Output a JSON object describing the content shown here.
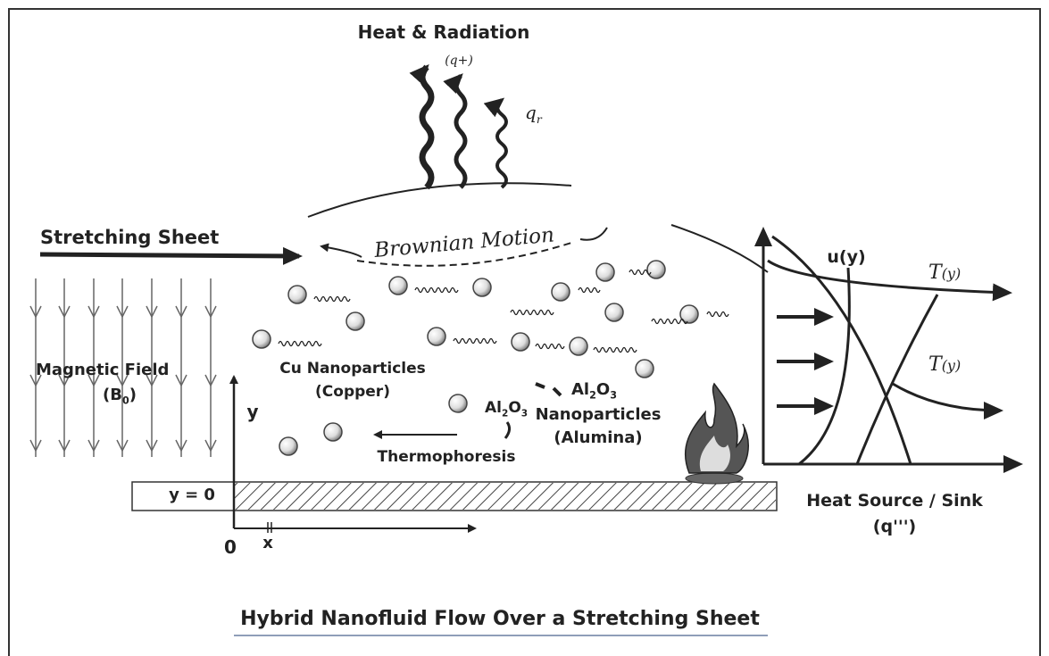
{
  "header": {
    "title": "Heat & Radiation",
    "subtitle": "(q+)",
    "flux": [
      "q",
      "r"
    ]
  },
  "labels": {
    "stretching": "Stretching Sheet",
    "brownian": "Brownian Motion",
    "magnetic": "Magnetic Field",
    "magnetic_symbol": [
      "(B",
      "0",
      ")"
    ],
    "cu": "Cu Nanoparticles",
    "cu_name": "(Copper)",
    "al_small": [
      "Al",
      "2",
      "O",
      "3"
    ],
    "al_big": [
      "Al",
      "2",
      "O",
      "3"
    ],
    "al_name": "Nanoparticles",
    "al_sub": "(Alumina)",
    "thermo": "Thermophoresis",
    "axis_y": "y",
    "wall": "y = 0",
    "origin": "0",
    "axis_x": "x"
  },
  "profile": {
    "u": "u(y)",
    "t1": [
      "T",
      "(y)"
    ],
    "t2": [
      "T",
      "(y)"
    ],
    "source": "Heat Source / Sink",
    "source_symbol": "(q''')"
  },
  "footer": {
    "title": "Hybrid Nanofluid Flow Over a Stretching Sheet"
  }
}
